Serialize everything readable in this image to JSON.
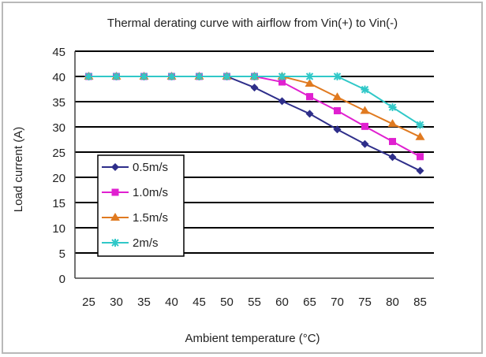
{
  "chart_data": {
    "type": "line",
    "title": "Thermal derating curve with airflow from Vin(+) to Vin(-)",
    "xlabel": "Ambient temperature (°C)",
    "ylabel": "Load current (A)",
    "x": [
      25,
      30,
      35,
      40,
      45,
      50,
      55,
      60,
      65,
      70,
      75,
      80,
      85
    ],
    "xlim": [
      22.5,
      87.5
    ],
    "ylim": [
      0,
      45
    ],
    "yticks": [
      0,
      5,
      10,
      15,
      20,
      25,
      30,
      35,
      40,
      45
    ],
    "grid": "horizontal",
    "legend_position": "left-center",
    "series": [
      {
        "name": "0.5m/s",
        "color": "#2e2e8a",
        "marker": "diamond",
        "values": [
          40,
          40,
          40,
          40,
          40,
          40,
          37.8,
          35.1,
          32.6,
          29.5,
          26.6,
          24.0,
          21.3
        ]
      },
      {
        "name": "1.0m/s",
        "color": "#e020d0",
        "marker": "square",
        "values": [
          40,
          40,
          40,
          40,
          40,
          40,
          40,
          38.9,
          36.0,
          33.2,
          30.1,
          27.1,
          24.1
        ]
      },
      {
        "name": "1.5m/s",
        "color": "#e07a20",
        "marker": "triangle",
        "values": [
          40,
          40,
          40,
          40,
          40,
          40,
          40,
          40,
          38.6,
          35.9,
          33.2,
          30.6,
          28.0
        ]
      },
      {
        "name": "2m/s",
        "color": "#30c8c8",
        "marker": "star",
        "values": [
          40,
          40,
          40,
          40,
          40,
          40,
          40,
          40,
          40,
          40,
          37.4,
          33.9,
          30.4
        ]
      }
    ]
  }
}
